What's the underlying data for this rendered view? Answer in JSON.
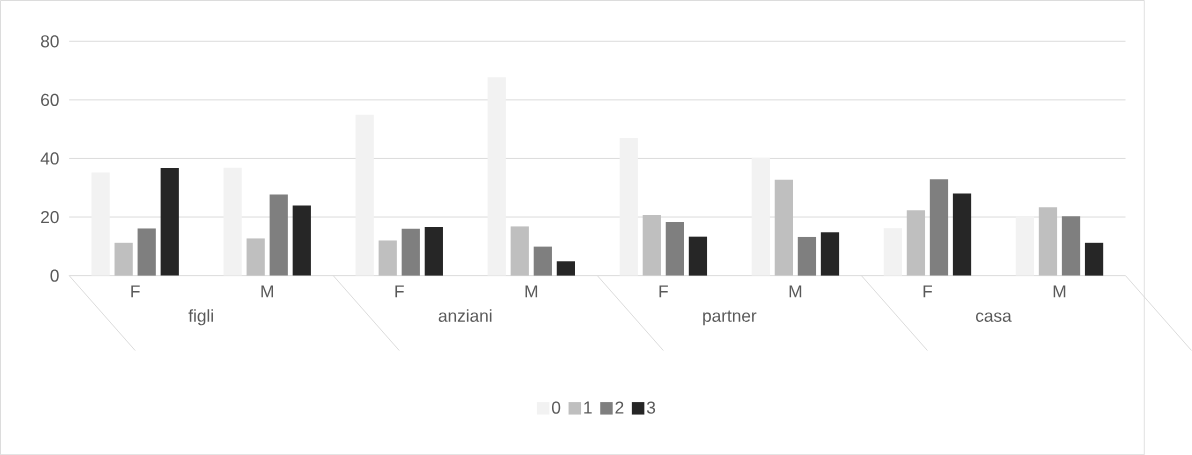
{
  "chart_data": {
    "type": "bar",
    "categories": [
      "F",
      "M",
      "F",
      "M",
      "F",
      "M",
      "F",
      "M"
    ],
    "series": [
      {
        "name": "0",
        "color": "#f2f2f2",
        "values": [
          35.2,
          36.8,
          54.9,
          67.7,
          47,
          40.2,
          16.2,
          20.3
        ]
      },
      {
        "name": "1",
        "color": "#bfbfbf",
        "values": [
          11.2,
          12.7,
          12,
          16.8,
          20.7,
          32.7,
          22.3,
          23.3
        ]
      },
      {
        "name": "2",
        "color": "#7f7f7f",
        "values": [
          16.1,
          27.7,
          16,
          9.9,
          18.3,
          13.2,
          32.9,
          20.3
        ]
      },
      {
        "name": "3",
        "color": "#262626",
        "values": [
          36.7,
          23.9,
          16.6,
          4.9,
          13.3,
          14.8,
          28,
          11.2
        ]
      }
    ],
    "ylim": [
      0,
      80
    ],
    "yticks": [
      0,
      20,
      40,
      60,
      80
    ],
    "grid": "y",
    "legend": "bottom",
    "annotations": [
      "figli",
      "anziani",
      "partner",
      "casa"
    ]
  }
}
